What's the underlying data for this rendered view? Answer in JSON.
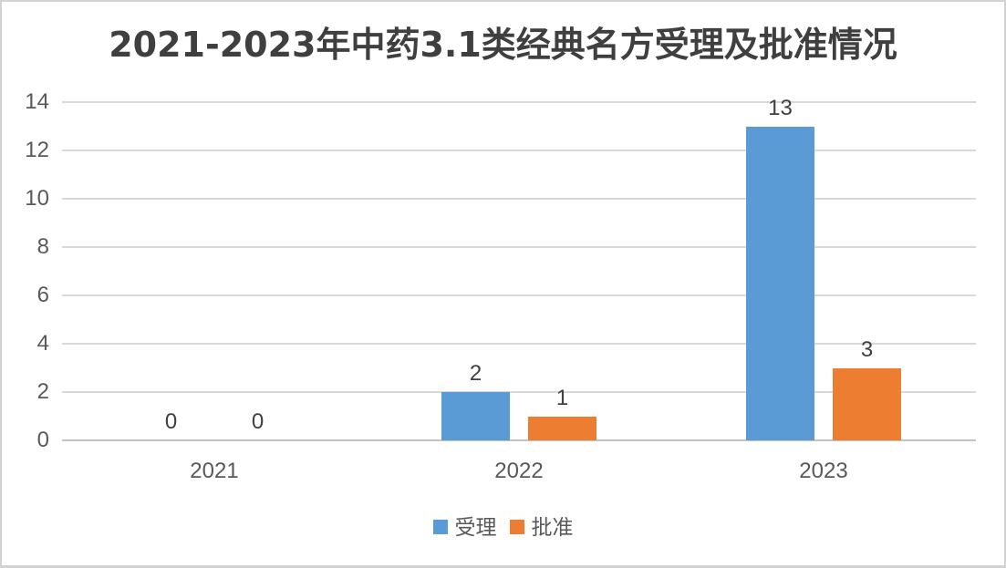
{
  "title": "2021-2023年中药3.1类经典名方受理及批准情况",
  "colors": {
    "series_accepted": "#5B9BD5",
    "series_approved": "#ED7D31",
    "gridline": "#D9D9D9",
    "axis_text": "#595959",
    "title_text": "#3F3F3F",
    "frame_border": "#D2D2D2"
  },
  "chart_data": {
    "type": "bar",
    "title": "2021-2023年中药3.1类经典名方受理及批准情况",
    "categories": [
      "2021",
      "2022",
      "2023"
    ],
    "series": [
      {
        "name": "受理",
        "color": "#5B9BD5",
        "values": [
          0,
          2,
          13
        ]
      },
      {
        "name": "批准",
        "color": "#ED7D31",
        "values": [
          0,
          1,
          3
        ]
      }
    ],
    "xlabel": "",
    "ylabel": "",
    "ylim": [
      0,
      14
    ],
    "ytick_step": 2,
    "ytick_labels": [
      "0",
      "2",
      "4",
      "6",
      "8",
      "10",
      "12",
      "14"
    ],
    "grid": true,
    "data_labels": true,
    "data_label_values": [
      [
        "0",
        "2",
        "13"
      ],
      [
        "0",
        "1",
        "3"
      ]
    ],
    "legend_position": "bottom"
  }
}
